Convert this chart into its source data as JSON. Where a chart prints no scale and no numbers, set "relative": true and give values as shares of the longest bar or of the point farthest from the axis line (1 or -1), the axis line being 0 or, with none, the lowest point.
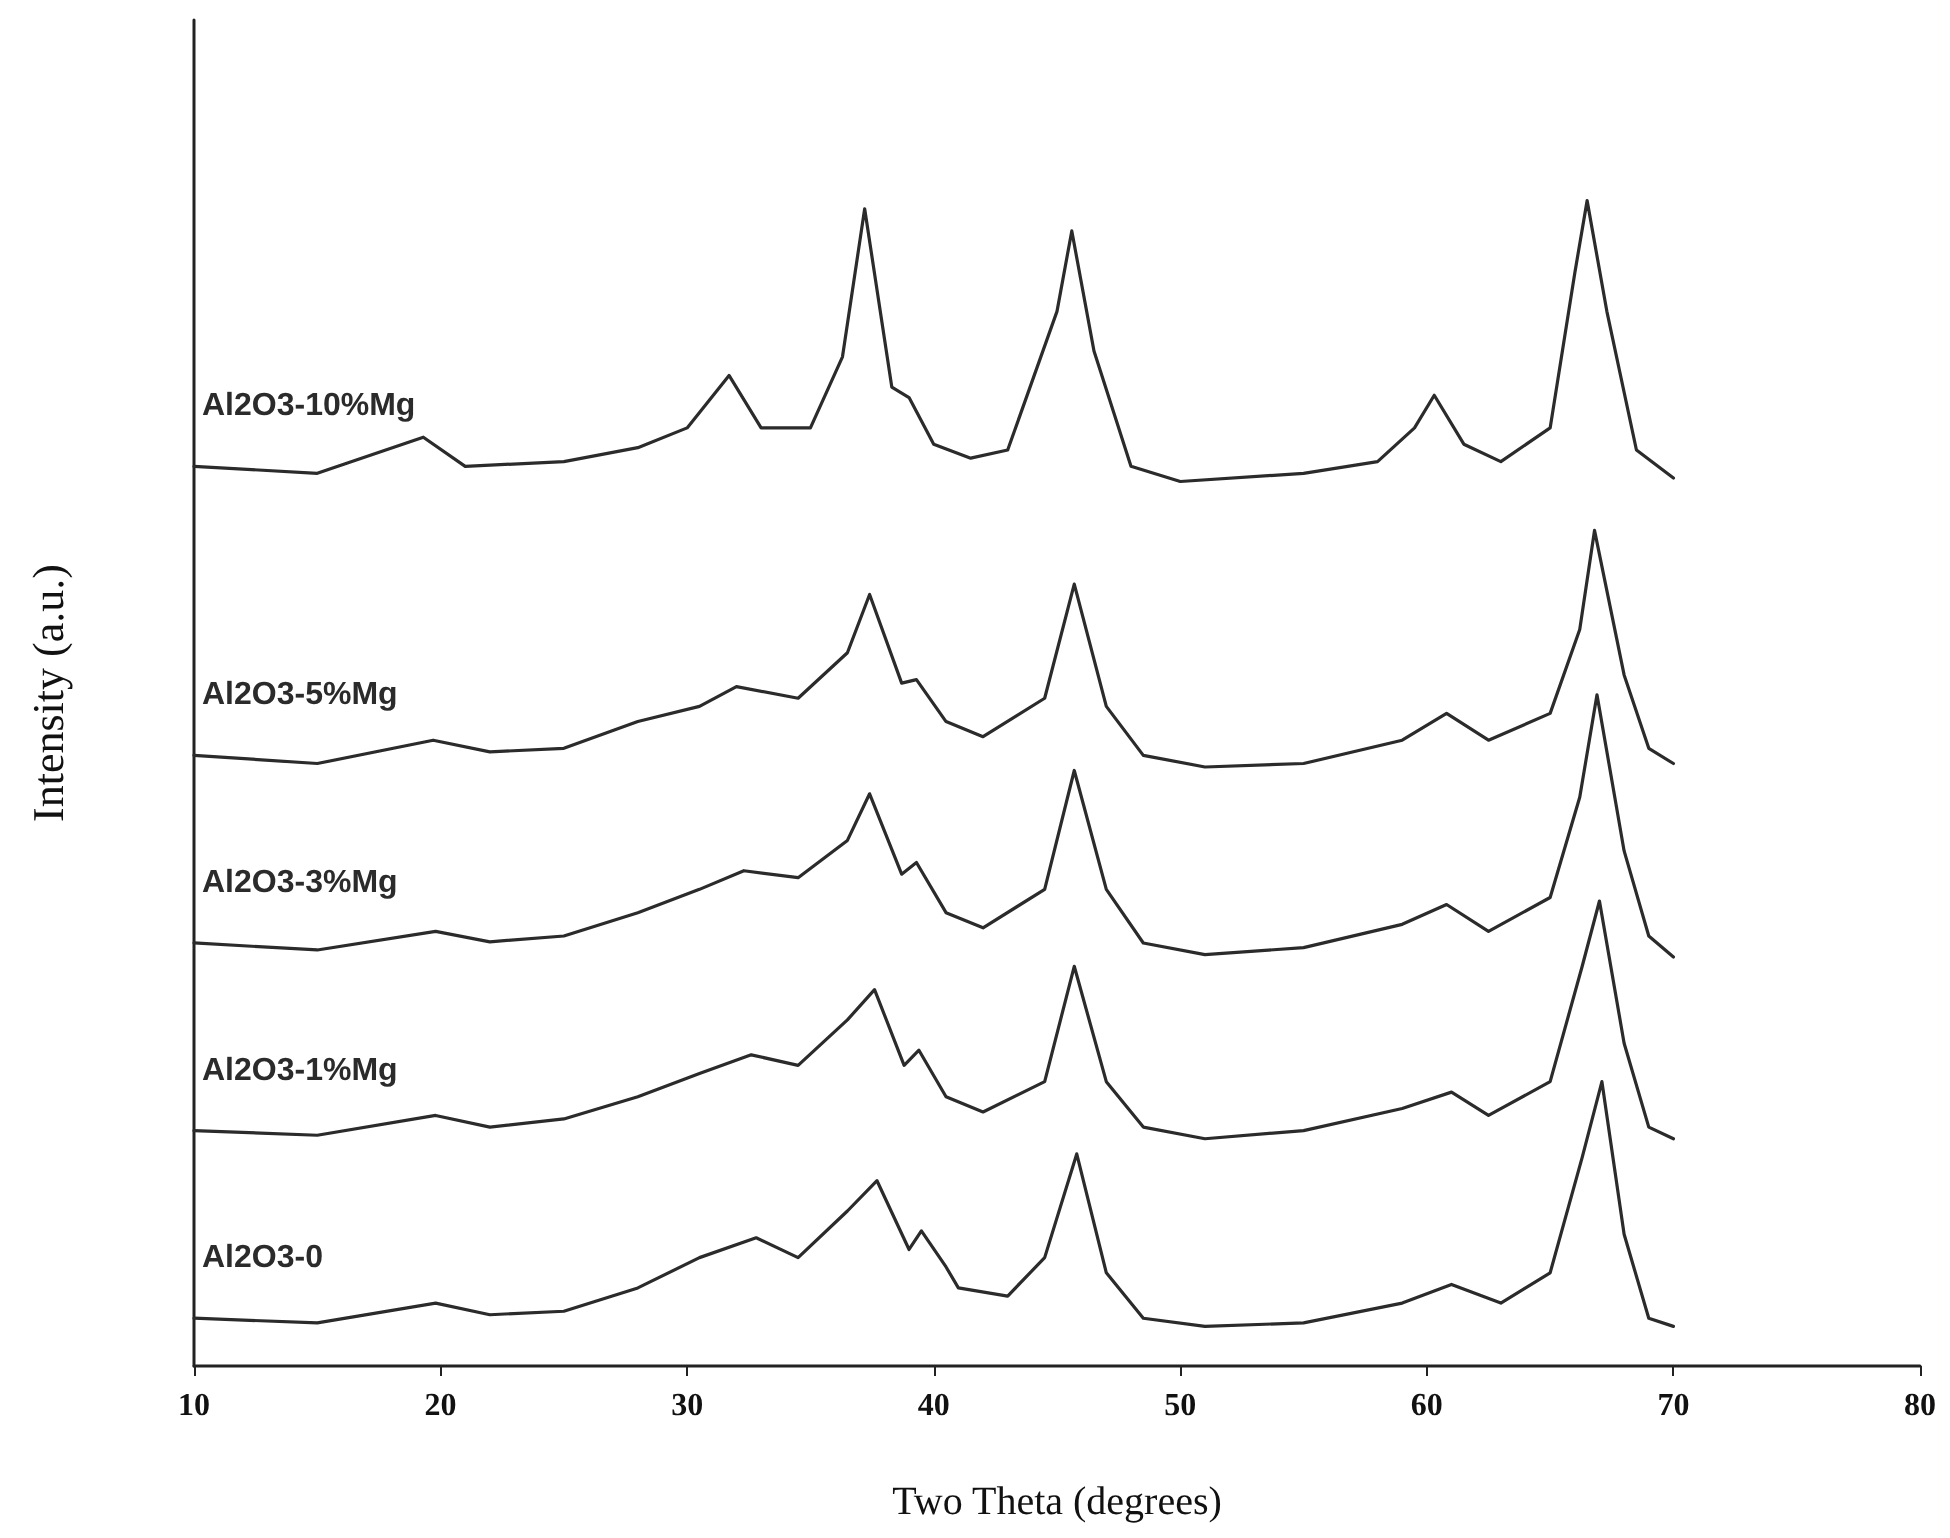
{
  "chart_data": {
    "type": "line",
    "relative": true,
    "xlabel": "Two Theta (degrees)",
    "ylabel": "Intensity (a.u.)",
    "xlim": [
      10,
      80
    ],
    "xticks": [
      10,
      20,
      30,
      40,
      50,
      60,
      70,
      80
    ],
    "grid": false,
    "legend": false,
    "marker": "none",
    "line_style": "solid",
    "series": [
      {
        "name": "Al2O3-0",
        "color": "#2b2b2b",
        "x": [
          10,
          15,
          19.8,
          22,
          25,
          28,
          30.5,
          32.8,
          34.5,
          36.5,
          37.7,
          39,
          39.5,
          40.5,
          41,
          43,
          44.5,
          45.8,
          47,
          48.5,
          51,
          55,
          59,
          61,
          63,
          65,
          66.3,
          67.1,
          68,
          69,
          70
        ],
        "values": [
          0.041,
          0.037,
          0.054,
          0.044,
          0.047,
          0.067,
          0.093,
          0.11,
          0.093,
          0.133,
          0.159,
          0.1,
          0.116,
          0.085,
          0.067,
          0.06,
          0.093,
          0.182,
          0.08,
          0.041,
          0.034,
          0.037,
          0.054,
          0.07,
          0.054,
          0.08,
          0.179,
          0.244,
          0.113,
          0.041,
          0.034
        ]
      },
      {
        "name": "Al2O3-1%Mg",
        "color": "#2b2b2b",
        "x": [
          10,
          15,
          19.8,
          22,
          25,
          28,
          30.5,
          32.6,
          34.5,
          36.5,
          37.6,
          38.8,
          39.4,
          40.5,
          42,
          44.5,
          45.7,
          47,
          48.5,
          51,
          55,
          59,
          61,
          62.5,
          65,
          66.3,
          67,
          68,
          69,
          70
        ],
        "values": [
          0.202,
          0.198,
          0.215,
          0.205,
          0.212,
          0.231,
          0.251,
          0.267,
          0.258,
          0.297,
          0.323,
          0.258,
          0.271,
          0.231,
          0.218,
          0.244,
          0.343,
          0.244,
          0.205,
          0.195,
          0.202,
          0.221,
          0.235,
          0.215,
          0.244,
          0.343,
          0.399,
          0.277,
          0.205,
          0.195
        ]
      },
      {
        "name": "Al2O3-3%Mg",
        "color": "#2b2b2b",
        "x": [
          10,
          15,
          19.8,
          22,
          25,
          28,
          30.5,
          32.3,
          34.5,
          36.5,
          37.4,
          38.7,
          39.3,
          40.5,
          42,
          44.5,
          45.7,
          47,
          48.5,
          51,
          55,
          59,
          60.8,
          62.5,
          65,
          66.2,
          66.9,
          68,
          69,
          70
        ],
        "values": [
          0.363,
          0.357,
          0.373,
          0.364,
          0.369,
          0.389,
          0.409,
          0.425,
          0.419,
          0.451,
          0.491,
          0.422,
          0.432,
          0.389,
          0.376,
          0.409,
          0.511,
          0.409,
          0.363,
          0.353,
          0.359,
          0.379,
          0.396,
          0.373,
          0.402,
          0.488,
          0.576,
          0.442,
          0.369,
          0.351
        ]
      },
      {
        "name": "Al2O3-5%Mg",
        "color": "#2b2b2b",
        "x": [
          10,
          15,
          19.7,
          22,
          25,
          28,
          30.5,
          32,
          34.5,
          36.5,
          37.4,
          38.7,
          39.3,
          40.5,
          42,
          44.5,
          45.7,
          47,
          48.5,
          51,
          55,
          59,
          60.8,
          62.5,
          65,
          66.2,
          66.8,
          68,
          69,
          70
        ],
        "values": [
          0.524,
          0.517,
          0.537,
          0.527,
          0.53,
          0.553,
          0.566,
          0.583,
          0.573,
          0.612,
          0.662,
          0.586,
          0.589,
          0.553,
          0.54,
          0.573,
          0.671,
          0.566,
          0.524,
          0.514,
          0.517,
          0.537,
          0.56,
          0.537,
          0.56,
          0.632,
          0.717,
          0.593,
          0.53,
          0.517
        ]
      },
      {
        "name": "Al2O3-10%Mg",
        "color": "#2b2b2b",
        "x": [
          10,
          15,
          19.3,
          21,
          25,
          28,
          30,
          31.7,
          33,
          35,
          36.3,
          37.2,
          38.3,
          39,
          40,
          41.5,
          43,
          45,
          45.6,
          46.5,
          48,
          50,
          55,
          58,
          59.5,
          60.3,
          61.5,
          63,
          65,
          66,
          66.5,
          67.3,
          68.5,
          70
        ],
        "values": [
          0.772,
          0.766,
          0.797,
          0.772,
          0.776,
          0.788,
          0.805,
          0.85,
          0.805,
          0.805,
          0.866,
          0.993,
          0.84,
          0.831,
          0.791,
          0.779,
          0.786,
          0.905,
          0.974,
          0.871,
          0.772,
          0.759,
          0.766,
          0.776,
          0.805,
          0.833,
          0.791,
          0.776,
          0.805,
          0.938,
          1.0,
          0.905,
          0.786,
          0.762
        ]
      }
    ]
  }
}
